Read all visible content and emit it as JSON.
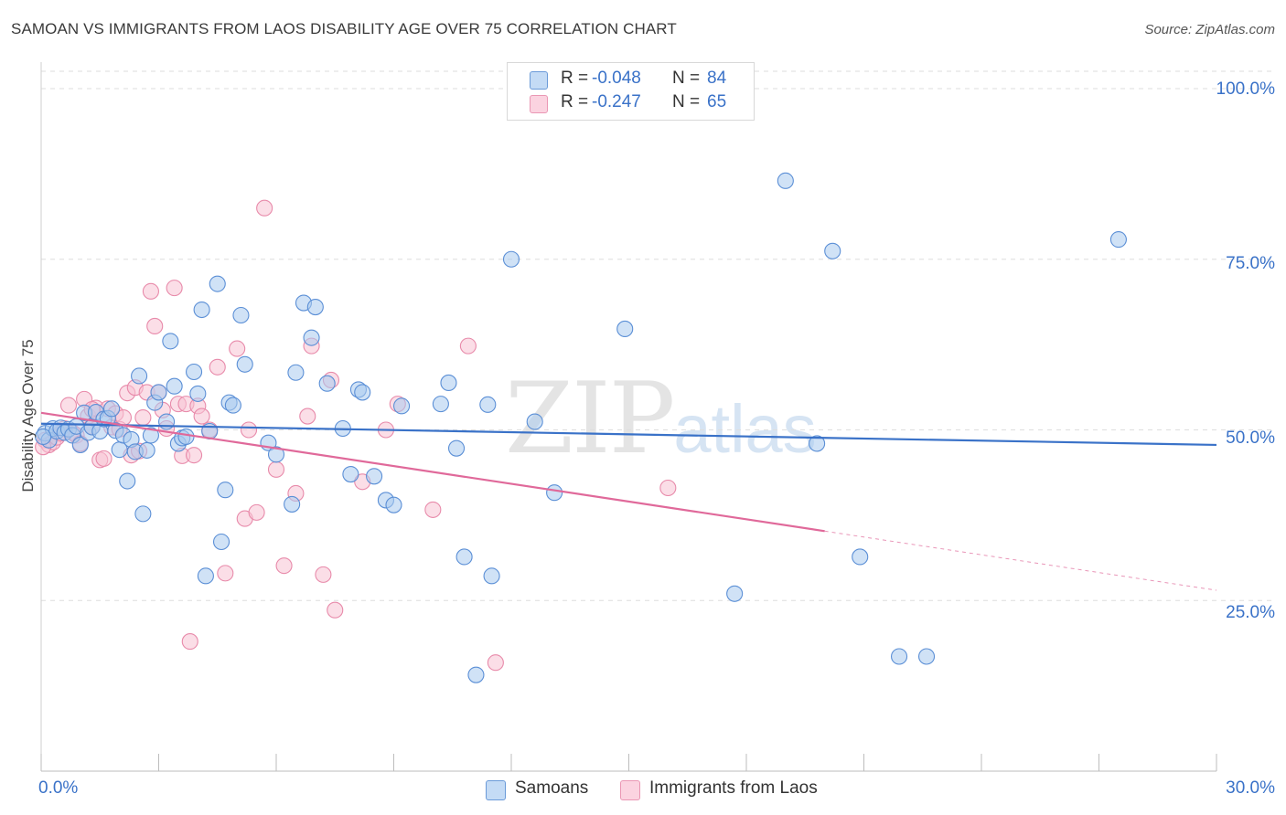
{
  "header": {
    "title": "SAMOAN VS IMMIGRANTS FROM LAOS DISABILITY AGE OVER 75 CORRELATION CHART",
    "source": "Source: ZipAtlas.com"
  },
  "watermark": {
    "zip": "ZIP",
    "atlas": "atlas"
  },
  "legend": {
    "rows": [
      {
        "r_label": "R =",
        "r_value": "-0.048",
        "n_label": "N =",
        "n_value": "84",
        "color": "#9dc3ef"
      },
      {
        "r_label": "R =",
        "r_value": "-0.247",
        "n_label": "N =",
        "n_value": "65",
        "color": "#f6b8cc"
      }
    ]
  },
  "bottom_legend": {
    "samoans": "Samoans",
    "laos": "Immigrants from Laos"
  },
  "axes": {
    "ylabel": "Disability Age Over 75",
    "y_ticks": [
      "100.0%",
      "75.0%",
      "50.0%",
      "25.0%"
    ],
    "x_min_label": "0.0%",
    "x_max_label": "30.0%"
  },
  "colors": {
    "samoan_fill": "#a9cbef",
    "samoan_stroke": "#5b8fd6",
    "samoan_line": "#3a72c8",
    "laos_fill": "#f8c3d4",
    "laos_stroke": "#e88aaa",
    "laos_line": "#e0699a",
    "grid": "#dedede",
    "tick_text": "#3a72c8"
  },
  "chart_data": {
    "type": "scatter",
    "title": "SAMOAN VS IMMIGRANTS FROM LAOS DISABILITY AGE OVER 75 CORRELATION CHART",
    "xlabel": "",
    "ylabel": "Disability Age Over 75",
    "xlim": [
      0,
      30
    ],
    "ylim": [
      0,
      105
    ],
    "y_ticks": [
      25,
      50,
      75,
      100
    ],
    "grid": true,
    "legend_position": "top-center",
    "series": [
      {
        "name": "Samoans",
        "r": -0.048,
        "n": 84,
        "trend": {
          "x": [
            0,
            30
          ],
          "y": [
            50.9,
            47.8
          ],
          "dashed_from": null
        },
        "points": [
          [
            0.1,
            49.5
          ],
          [
            0.2,
            48.5
          ],
          [
            0.3,
            50.2
          ],
          [
            0.4,
            49.8
          ],
          [
            0.5,
            50.3
          ],
          [
            0.6,
            49.6
          ],
          [
            0.7,
            50.1
          ],
          [
            0.8,
            49.2
          ],
          [
            0.9,
            50.5
          ],
          [
            1.0,
            47.8
          ],
          [
            1.1,
            52.5
          ],
          [
            1.2,
            49.6
          ],
          [
            1.3,
            50.4
          ],
          [
            1.4,
            52.6
          ],
          [
            1.5,
            49.8
          ],
          [
            1.6,
            51.6
          ],
          [
            1.7,
            51.7
          ],
          [
            1.8,
            53.1
          ],
          [
            1.9,
            49.9
          ],
          [
            2.0,
            47.1
          ],
          [
            2.1,
            49.2
          ],
          [
            2.2,
            42.5
          ],
          [
            2.3,
            48.6
          ],
          [
            2.4,
            46.8
          ],
          [
            2.5,
            57.9
          ],
          [
            2.6,
            37.7
          ],
          [
            2.7,
            47.0
          ],
          [
            2.8,
            49.2
          ],
          [
            2.9,
            54.0
          ],
          [
            3.0,
            55.5
          ],
          [
            3.2,
            51.2
          ],
          [
            3.3,
            63.0
          ],
          [
            3.4,
            56.4
          ],
          [
            3.5,
            48.0
          ],
          [
            3.6,
            48.8
          ],
          [
            3.7,
            49.0
          ],
          [
            3.9,
            58.5
          ],
          [
            4.0,
            55.3
          ],
          [
            4.1,
            67.6
          ],
          [
            4.2,
            28.6
          ],
          [
            4.3,
            49.8
          ],
          [
            4.5,
            71.4
          ],
          [
            4.6,
            33.6
          ],
          [
            4.7,
            41.2
          ],
          [
            4.8,
            54.0
          ],
          [
            4.9,
            53.6
          ],
          [
            5.1,
            66.8
          ],
          [
            5.2,
            59.6
          ],
          [
            5.8,
            48.1
          ],
          [
            6.0,
            46.4
          ],
          [
            6.4,
            39.1
          ],
          [
            6.5,
            58.4
          ],
          [
            6.7,
            68.6
          ],
          [
            6.9,
            63.5
          ],
          [
            7.0,
            68.0
          ],
          [
            7.3,
            56.8
          ],
          [
            7.7,
            50.2
          ],
          [
            7.9,
            43.5
          ],
          [
            8.1,
            55.9
          ],
          [
            8.2,
            55.5
          ],
          [
            8.5,
            43.2
          ],
          [
            8.8,
            39.7
          ],
          [
            9.0,
            39.0
          ],
          [
            9.2,
            53.5
          ],
          [
            10.2,
            53.8
          ],
          [
            10.4,
            56.9
          ],
          [
            10.6,
            47.3
          ],
          [
            10.8,
            31.4
          ],
          [
            11.1,
            14.1
          ],
          [
            11.4,
            53.7
          ],
          [
            11.5,
            28.6
          ],
          [
            12.0,
            75.0
          ],
          [
            12.6,
            51.2
          ],
          [
            13.1,
            40.8
          ],
          [
            14.9,
            64.8
          ],
          [
            17.7,
            26.0
          ],
          [
            19.0,
            86.5
          ],
          [
            19.8,
            48.0
          ],
          [
            20.2,
            76.2
          ],
          [
            20.9,
            31.4
          ],
          [
            21.9,
            16.8
          ],
          [
            22.6,
            16.8
          ],
          [
            27.5,
            77.9
          ],
          [
            0.05,
            49.0
          ]
        ]
      },
      {
        "name": "Immigrants from Laos",
        "r": -0.247,
        "n": 65,
        "trend": {
          "x": [
            0,
            30
          ],
          "y": [
            52.5,
            26.5
          ],
          "dashed_from": 20.0
        },
        "points": [
          [
            0.1,
            48.5
          ],
          [
            0.2,
            47.8
          ],
          [
            0.3,
            48.2
          ],
          [
            0.4,
            48.9
          ],
          [
            0.5,
            49.5
          ],
          [
            0.6,
            50.2
          ],
          [
            0.7,
            53.6
          ],
          [
            0.8,
            49.6
          ],
          [
            0.9,
            49.2
          ],
          [
            1.0,
            48.0
          ],
          [
            1.1,
            54.5
          ],
          [
            1.2,
            52.0
          ],
          [
            1.3,
            50.5
          ],
          [
            1.4,
            53.2
          ],
          [
            1.5,
            45.6
          ],
          [
            1.6,
            45.8
          ],
          [
            1.7,
            53.1
          ],
          [
            1.8,
            50.4
          ],
          [
            1.9,
            52.4
          ],
          [
            2.0,
            50.1
          ],
          [
            2.1,
            51.8
          ],
          [
            2.2,
            55.4
          ],
          [
            2.3,
            46.3
          ],
          [
            2.4,
            56.2
          ],
          [
            2.5,
            46.9
          ],
          [
            2.6,
            51.8
          ],
          [
            2.7,
            55.5
          ],
          [
            2.8,
            70.3
          ],
          [
            2.9,
            65.2
          ],
          [
            3.0,
            55.5
          ],
          [
            3.1,
            52.9
          ],
          [
            3.2,
            50.2
          ],
          [
            3.4,
            70.8
          ],
          [
            3.5,
            53.8
          ],
          [
            3.6,
            46.2
          ],
          [
            3.7,
            53.8
          ],
          [
            3.8,
            19.0
          ],
          [
            3.9,
            46.3
          ],
          [
            4.0,
            53.5
          ],
          [
            4.1,
            52.0
          ],
          [
            4.3,
            50.0
          ],
          [
            4.5,
            59.2
          ],
          [
            4.7,
            29.0
          ],
          [
            5.0,
            61.9
          ],
          [
            5.2,
            37.0
          ],
          [
            5.3,
            50.0
          ],
          [
            5.5,
            37.9
          ],
          [
            5.7,
            82.5
          ],
          [
            6.0,
            44.2
          ],
          [
            6.2,
            30.1
          ],
          [
            6.5,
            40.7
          ],
          [
            6.8,
            52.0
          ],
          [
            6.9,
            62.3
          ],
          [
            7.2,
            28.8
          ],
          [
            7.4,
            57.3
          ],
          [
            7.5,
            23.6
          ],
          [
            8.2,
            42.4
          ],
          [
            8.8,
            50.0
          ],
          [
            9.1,
            53.8
          ],
          [
            10.0,
            38.3
          ],
          [
            10.9,
            62.3
          ],
          [
            11.6,
            15.9
          ],
          [
            16.0,
            41.5
          ],
          [
            0.05,
            47.5
          ],
          [
            1.3,
            53.0
          ]
        ]
      }
    ]
  }
}
